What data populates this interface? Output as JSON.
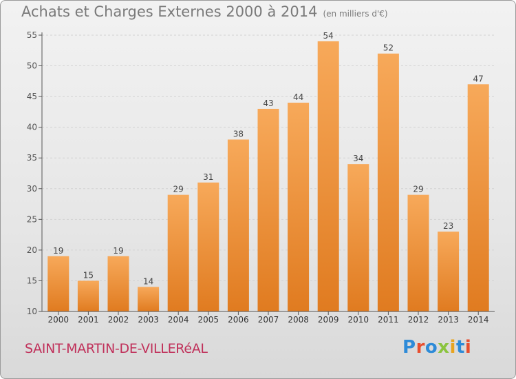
{
  "header": {
    "title": "Achats et Charges Externes 2000 à 2014",
    "unit": "(en milliers d'€)"
  },
  "footer": {
    "commune": "SAINT-MARTIN-DE-VILLERéAL",
    "brand_letters": [
      "P",
      "r",
      "o",
      "x",
      "i",
      "t",
      "i"
    ]
  },
  "colors": {
    "bar_light": "#f7a95a",
    "bar_dark": "#e07b20",
    "axis": "#555555",
    "grid": "#d2d2d2",
    "brand": [
      "#2e8bd8",
      "#e84e2e",
      "#2e8bd8",
      "#8bc43f",
      "#e8a41f",
      "#2e8bd8",
      "#e84e2e"
    ]
  },
  "chart_data": {
    "type": "bar",
    "categories": [
      "2000",
      "2001",
      "2002",
      "2003",
      "2004",
      "2005",
      "2006",
      "2007",
      "2008",
      "2009",
      "2010",
      "2011",
      "2012",
      "2013",
      "2014"
    ],
    "values": [
      19,
      15,
      19,
      14,
      29,
      31,
      38,
      43,
      44,
      54,
      34,
      52,
      29,
      23,
      47
    ],
    "ylim": [
      10,
      55
    ],
    "yticks": [
      10,
      15,
      20,
      25,
      30,
      35,
      40,
      45,
      50,
      55
    ],
    "grid": true,
    "xlabel": "",
    "ylabel": ""
  }
}
